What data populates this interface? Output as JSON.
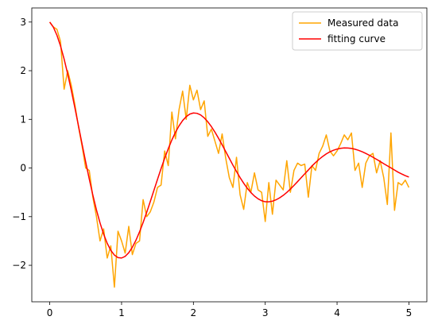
{
  "chart_data": {
    "type": "line",
    "x": [
      0,
      0.05,
      0.1,
      0.15,
      0.2,
      0.25,
      0.3,
      0.35,
      0.4,
      0.45,
      0.5,
      0.55,
      0.6,
      0.65,
      0.7,
      0.75,
      0.8,
      0.85,
      0.9,
      0.95,
      1,
      1.05,
      1.1,
      1.15,
      1.2,
      1.25,
      1.3,
      1.35,
      1.4,
      1.45,
      1.5,
      1.55,
      1.6,
      1.65,
      1.7,
      1.75,
      1.8,
      1.85,
      1.9,
      1.95,
      2,
      2.05,
      2.1,
      2.15,
      2.2,
      2.25,
      2.3,
      2.35,
      2.4,
      2.45,
      2.5,
      2.55,
      2.6,
      2.65,
      2.7,
      2.75,
      2.8,
      2.85,
      2.9,
      2.95,
      3,
      3.05,
      3.1,
      3.15,
      3.2,
      3.25,
      3.3,
      3.35,
      3.4,
      3.45,
      3.5,
      3.55,
      3.6,
      3.65,
      3.7,
      3.75,
      3.8,
      3.85,
      3.9,
      3.95,
      4,
      4.05,
      4.1,
      4.15,
      4.2,
      4.25,
      4.3,
      4.35,
      4.4,
      4.45,
      4.5,
      4.55,
      4.6,
      4.65,
      4.7,
      4.75,
      4.8,
      4.85,
      4.9,
      4.95,
      5
    ],
    "series": [
      {
        "name": "Measured data",
        "color": "#ffa500",
        "values": [
          3.0,
          2.9,
          2.85,
          2.6,
          1.62,
          2.0,
          1.7,
          1.3,
          0.85,
          0.45,
          0.0,
          -0.05,
          -0.6,
          -1.0,
          -1.5,
          -1.25,
          -1.85,
          -1.6,
          -2.45,
          -1.3,
          -1.5,
          -1.75,
          -1.2,
          -1.78,
          -1.55,
          -1.5,
          -0.65,
          -1.0,
          -0.9,
          -0.7,
          -0.4,
          -0.35,
          0.35,
          0.05,
          1.15,
          0.6,
          1.2,
          1.58,
          1.0,
          1.7,
          1.4,
          1.6,
          1.2,
          1.38,
          0.65,
          0.8,
          0.55,
          0.3,
          0.7,
          0.2,
          -0.2,
          -0.4,
          0.22,
          -0.55,
          -0.85,
          -0.3,
          -0.5,
          -0.1,
          -0.45,
          -0.5,
          -1.1,
          -0.3,
          -0.95,
          -0.25,
          -0.35,
          -0.45,
          0.15,
          -0.5,
          -0.05,
          0.1,
          0.05,
          0.08,
          -0.6,
          0.05,
          -0.05,
          0.3,
          0.45,
          0.68,
          0.35,
          0.25,
          0.35,
          0.5,
          0.68,
          0.58,
          0.72,
          -0.05,
          0.1,
          -0.4,
          0.1,
          0.25,
          0.3,
          -0.1,
          0.15,
          -0.2,
          -0.75,
          0.72,
          -0.87,
          -0.3,
          -0.35,
          -0.25,
          -0.4
        ]
      },
      {
        "name": "fitting curve",
        "color": "#ff0000",
        "values": [
          3.0,
          2.896,
          2.729,
          2.508,
          2.24,
          1.932,
          1.596,
          1.237,
          0.866,
          0.492,
          0.126,
          -0.226,
          -0.558,
          -0.861,
          -1.129,
          -1.358,
          -1.548,
          -1.692,
          -1.79,
          -1.842,
          -1.85,
          -1.816,
          -1.741,
          -1.629,
          -1.485,
          -1.313,
          -1.12,
          -0.909,
          -0.687,
          -0.461,
          -0.234,
          -0.012,
          0.2,
          0.397,
          0.576,
          0.734,
          0.867,
          0.975,
          1.056,
          1.109,
          1.131,
          1.124,
          1.091,
          1.032,
          0.951,
          0.852,
          0.737,
          0.61,
          0.476,
          0.337,
          0.198,
          0.059,
          -0.073,
          -0.198,
          -0.313,
          -0.416,
          -0.504,
          -0.577,
          -0.633,
          -0.673,
          -0.694,
          -0.695,
          -0.682,
          -0.654,
          -0.614,
          -0.563,
          -0.502,
          -0.433,
          -0.359,
          -0.28,
          -0.2,
          -0.119,
          -0.041,
          0.04,
          0.112,
          0.179,
          0.238,
          0.29,
          0.332,
          0.365,
          0.389,
          0.404,
          0.412,
          0.411,
          0.403,
          0.386,
          0.363,
          0.334,
          0.3,
          0.262,
          0.221,
          0.178,
          0.134,
          0.089,
          0.045,
          0.003,
          -0.042,
          -0.086,
          -0.123,
          -0.157,
          -0.186
        ]
      }
    ],
    "xlim": [
      -0.25,
      5.25
    ],
    "ylim": [
      -2.75,
      3.29
    ],
    "xticks": [
      0,
      1,
      2,
      3,
      4,
      5
    ],
    "yticks": [
      {
        "value": -2,
        "label": "−2"
      },
      {
        "value": -1,
        "label": "−1"
      },
      0,
      1,
      2,
      3
    ],
    "legend": "upper right"
  }
}
